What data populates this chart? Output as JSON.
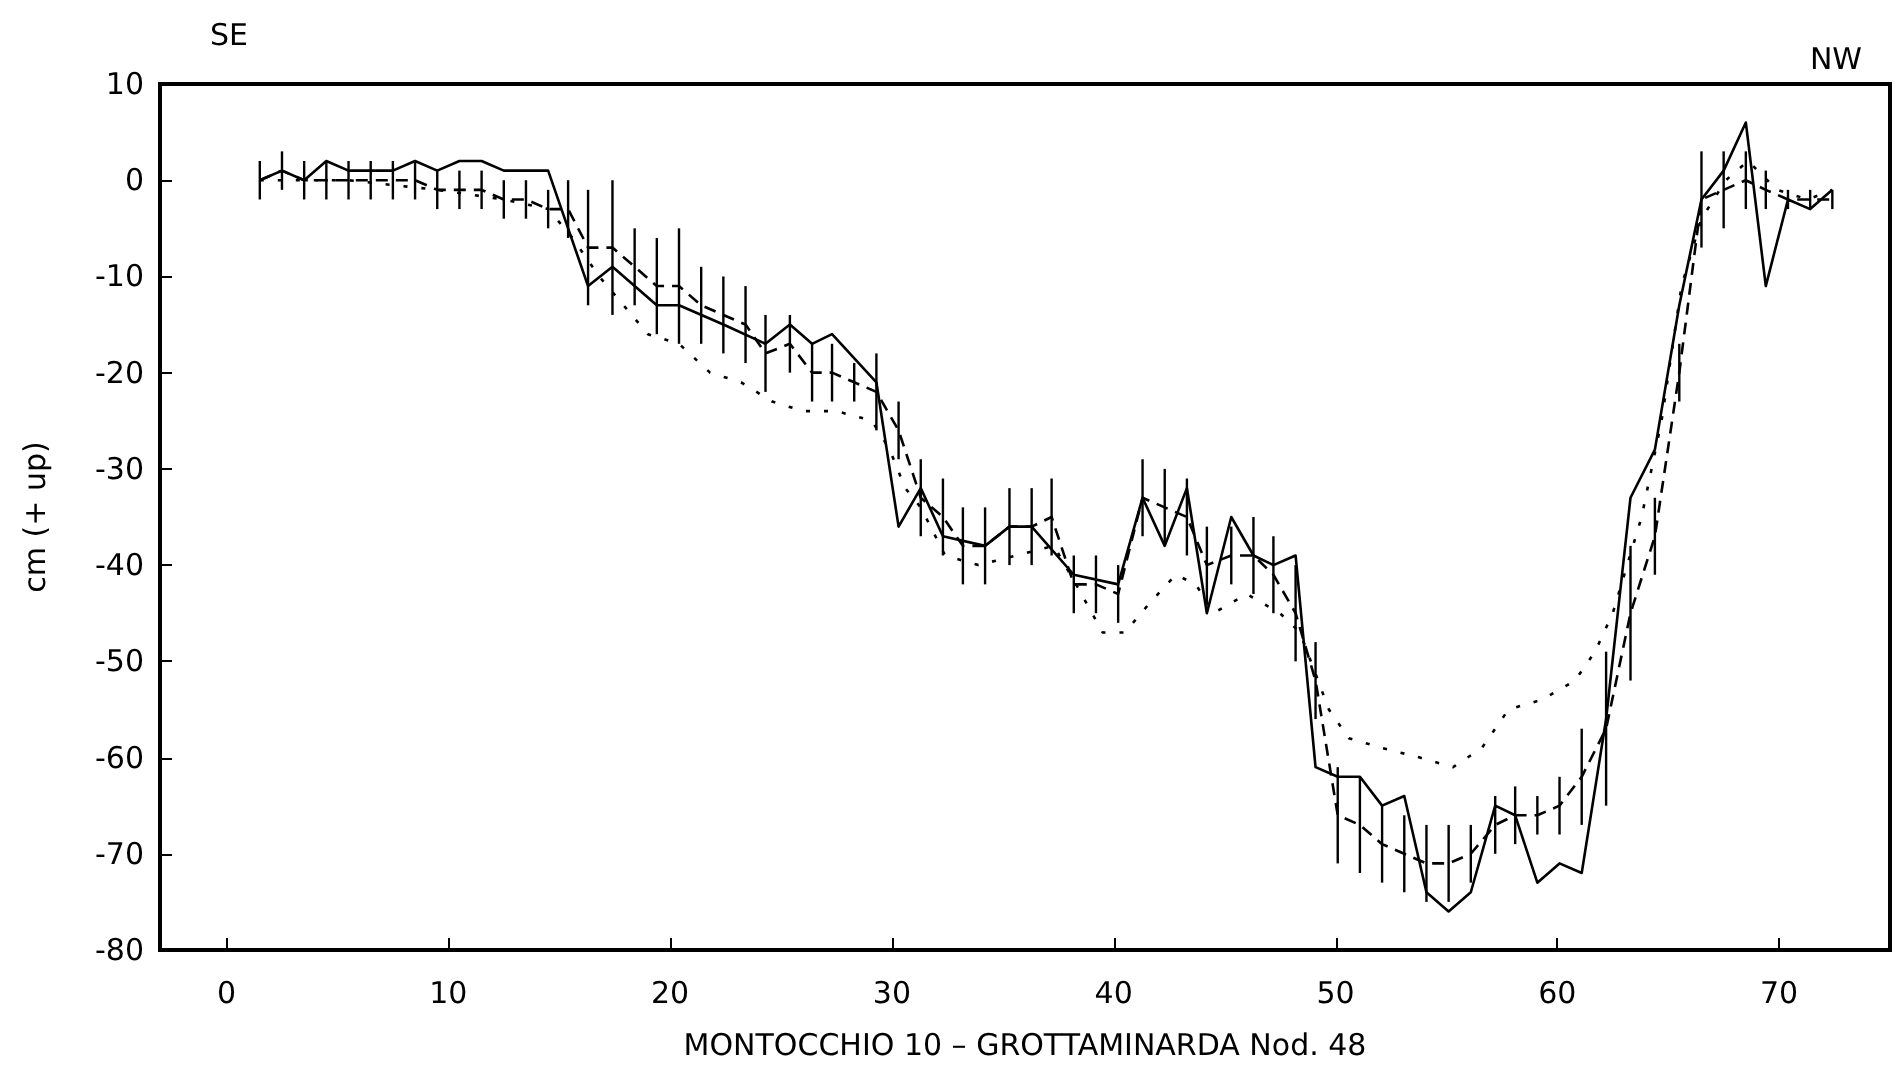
{
  "chart_data": {
    "type": "line",
    "xlabel": "MONTOCCHIO 10 – GROTTAMINARDA Nod. 48",
    "ylabel": "cm (+ up)",
    "annotations": [
      "SE",
      "NW"
    ],
    "xlim": [
      -3,
      75
    ],
    "xticks": [
      0,
      10,
      20,
      30,
      40,
      50,
      60,
      70
    ],
    "ylim": [
      -80,
      10
    ],
    "yticks": [
      -80,
      -70,
      -60,
      -50,
      -40,
      -30,
      -20,
      -10,
      0,
      10
    ],
    "grid": false,
    "marker": "none",
    "series": [
      {
        "color": "#000000",
        "line_style": "solid",
        "x": [
          1.5,
          2.5,
          3.5,
          4.5,
          5.5,
          6.5,
          7.5,
          8.5,
          9.5,
          10.5,
          11.5,
          12.5,
          13.5,
          14.5,
          16.3,
          17.4,
          19.4,
          20.4,
          22.4,
          24.3,
          25.4,
          26.4,
          27.3,
          29.3,
          30.3,
          31.3,
          32.3,
          34.2,
          35.3,
          36.3,
          38.2,
          40.2,
          41.3,
          42.3,
          43.3,
          44.2,
          45.3,
          46.3,
          47.2,
          48.2,
          49.1,
          50.1,
          51.1,
          52.1,
          53.1,
          54.1,
          55.1,
          56.1,
          57.2,
          58.1,
          59.1,
          60.1,
          61.1,
          62.2,
          63.3,
          64.4,
          65.5,
          66.5,
          67.5,
          68.5,
          69.4,
          70.4,
          71.4,
          72.4
        ],
        "values": [
          0,
          1,
          0,
          2,
          1,
          1,
          1,
          2,
          1,
          2,
          2,
          1,
          1,
          1,
          -11,
          -9,
          -13,
          -13,
          -15,
          -17,
          -15,
          -17,
          -16,
          -21,
          -36,
          -32,
          -37,
          -38,
          -36,
          -36,
          -41,
          -42,
          -33,
          -38,
          -32,
          -45,
          -35,
          -39,
          -40,
          -39,
          -61,
          -62,
          -62,
          -65,
          -64,
          -74,
          -76,
          -74,
          -65,
          -66,
          -73,
          -71,
          -72,
          -56,
          -33,
          -28,
          -13,
          -2,
          1,
          6,
          -11,
          -2,
          -3,
          -1
        ]
      },
      {
        "color": "#000000",
        "line_style": "dashed",
        "x": [
          1.5,
          2.5,
          3.5,
          4.5,
          5.5,
          6.5,
          7.5,
          8.5,
          9.5,
          10.5,
          11.5,
          12.5,
          13.5,
          14.5,
          15.4,
          16.3,
          17.4,
          18.4,
          19.4,
          20.4,
          21.4,
          22.4,
          23.4,
          24.3,
          25.4,
          26.4,
          27.3,
          28.3,
          29.3,
          30.3,
          31.3,
          32.3,
          33.2,
          34.2,
          35.3,
          36.3,
          37.2,
          38.2,
          39.2,
          40.2,
          41.3,
          42.3,
          43.3,
          44.2,
          45.3,
          46.3,
          47.2,
          48.2,
          49.1,
          50.1,
          51.1,
          52.1,
          53.1,
          54.1,
          55.1,
          56.1,
          57.2,
          58.1,
          59.1,
          60.1,
          61.1,
          62.2,
          63.3,
          64.4,
          65.5,
          66.5,
          67.5,
          68.5,
          69.4,
          70.4,
          71.4,
          72.4
        ],
        "values": [
          0,
          1,
          0,
          0,
          0,
          0,
          0,
          0,
          -1,
          -1,
          -1,
          -2,
          -2,
          -3,
          -3,
          -7,
          -7,
          -9,
          -11,
          -11,
          -13,
          -14,
          -15,
          -18,
          -17,
          -20,
          -20,
          -21,
          -22,
          -26,
          -33,
          -35,
          -38,
          -38,
          -36,
          -36,
          -35,
          -42,
          -42,
          -43,
          -33,
          -34,
          -35,
          -40,
          -39,
          -39,
          -41,
          -45,
          -52,
          -66,
          -67,
          -69,
          -70,
          -71,
          -71,
          -70,
          -67,
          -66,
          -66,
          -65,
          -62,
          -57,
          -45,
          -37,
          -20,
          -2,
          -1,
          0,
          -1,
          -2,
          -2,
          -2
        ],
        "errors": [
          2,
          2,
          2,
          2,
          2,
          2,
          2,
          2,
          2,
          2,
          2,
          2,
          2,
          2,
          3,
          6,
          7,
          4,
          5,
          6,
          4,
          4,
          4,
          4,
          3,
          3,
          3,
          2,
          4,
          3,
          4,
          4,
          4,
          4,
          4,
          4,
          4,
          3,
          3,
          3,
          4,
          4,
          4,
          4,
          3,
          4,
          4,
          5,
          4,
          5,
          5,
          4,
          4,
          4,
          4,
          3,
          3,
          3,
          2,
          3,
          5,
          8,
          7,
          4,
          3,
          5,
          4,
          3,
          2,
          1,
          1,
          1
        ]
      },
      {
        "color": "#000000",
        "line_style": "dotted",
        "x": [
          1.5,
          5.5,
          9.5,
          12.5,
          14.5,
          15.6,
          16.8,
          17.9,
          19,
          20.4,
          21.8,
          23.2,
          24.6,
          26,
          27.5,
          29.1,
          29.9,
          30.6,
          31.3,
          32.4,
          33.9,
          35.6,
          37.3,
          38.3,
          39.5,
          40.5,
          41.6,
          42.8,
          43.7,
          44.5,
          46,
          47.5,
          48.4,
          49.7,
          50.6,
          52.1,
          53.8,
          55.3,
          56.6,
          57.8,
          59.3,
          60.8,
          61.7,
          62.5,
          63.8,
          64.7,
          65.6,
          66.5,
          67.6,
          68.6,
          69.9,
          71.3,
          72.4
        ],
        "values": [
          0,
          0,
          -1,
          -2,
          -3,
          -6,
          -10,
          -13,
          -16,
          -17,
          -20,
          -21,
          -23,
          -24,
          -24,
          -25,
          -28,
          -32,
          -34,
          -39,
          -40,
          -39,
          -38,
          -42,
          -47,
          -47,
          -44,
          -41,
          -42,
          -45,
          -43,
          -45,
          -47,
          -55,
          -58,
          -59,
          -60,
          -61,
          -59,
          -55,
          -54,
          -52,
          -49,
          -45,
          -35,
          -25,
          -11,
          -4,
          0,
          2,
          -1,
          -2,
          -1
        ]
      }
    ]
  }
}
